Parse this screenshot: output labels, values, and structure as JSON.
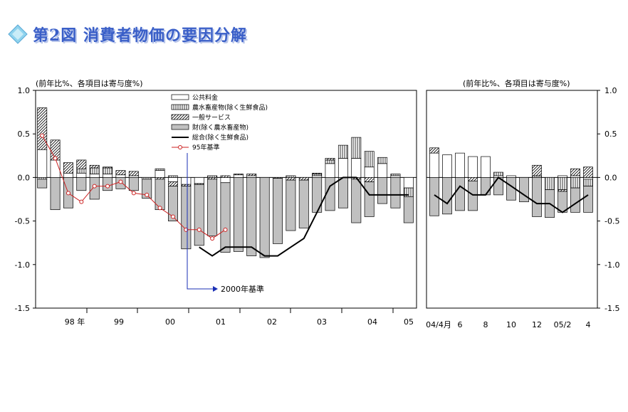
{
  "title": "第2図 消費者物価の要因分解",
  "colors": {
    "title": "#3a5fc8",
    "bar_goods": "#c0c0c0",
    "line": "#000000",
    "line95": "#cc2222"
  },
  "chart_data": [
    {
      "type": "bar",
      "stacked": true,
      "ylabel": "(前年比%、各項目は寄与度%)",
      "ylim": [
        -1.5,
        1.0
      ],
      "yticks": [
        "1.0",
        "0.5",
        "0.0",
        "-0.5",
        "-1.0",
        "-1.5"
      ],
      "x_labels": [
        "98 年",
        "99",
        "00",
        "01",
        "02",
        "03",
        "04",
        "05"
      ],
      "legend": [
        "公共料金",
        "農水畜産物(除く生鮮食品)",
        "一般サービス",
        "財(除く農水畜産物)",
        "総合(除く生鮮食品)",
        "95年基準"
      ],
      "annotation": "2000年基準",
      "n_periods": 29,
      "series": [
        {
          "name": "公共料金",
          "values": [
            0.32,
            0.2,
            0.05,
            0.05,
            0.04,
            0.04,
            0.03,
            0.02,
            0.0,
            0.08,
            -0.05,
            -0.08,
            -0.07,
            0.0,
            -0.06,
            0.03,
            0.02,
            0.0,
            0.0,
            0.0,
            0.0,
            0.02,
            0.16,
            0.22,
            0.22,
            0.12,
            0.16,
            0.02,
            -0.12
          ]
        },
        {
          "name": "農水畜産物(除く生鮮食品)",
          "values": [
            -0.02,
            0.0,
            0.0,
            0.05,
            0.07,
            0.07,
            0.0,
            0.0,
            -0.02,
            0.02,
            0.02,
            0.0,
            0.0,
            0.02,
            0.0,
            0.0,
            0.0,
            0.0,
            0.0,
            0.02,
            0.0,
            0.02,
            0.04,
            0.15,
            0.24,
            0.18,
            0.07,
            0.02,
            -0.1
          ]
        },
        {
          "name": "一般サービス",
          "values": [
            0.48,
            0.23,
            0.12,
            0.1,
            0.03,
            0.01,
            0.05,
            0.05,
            0.0,
            -0.02,
            -0.05,
            -0.02,
            -0.01,
            -0.02,
            0.02,
            0.01,
            0.02,
            0.0,
            -0.01,
            -0.03,
            -0.03,
            0.01,
            0.02,
            0.0,
            -0.02,
            -0.05,
            0.0,
            0.0,
            0.0
          ]
        },
        {
          "name": "財(除く農水畜産物)",
          "values": [
            -0.1,
            -0.37,
            -0.35,
            -0.15,
            -0.25,
            -0.15,
            -0.13,
            -0.15,
            -0.22,
            -0.35,
            -0.4,
            -0.72,
            -0.7,
            -0.65,
            -0.8,
            -0.85,
            -0.9,
            -0.92,
            -0.75,
            -0.58,
            -0.55,
            -0.4,
            -0.38,
            -0.35,
            -0.5,
            -0.4,
            -0.3,
            -0.35,
            -0.3
          ]
        },
        {
          "name": "総合(除く生鮮食品)",
          "type": "line",
          "values": [
            null,
            null,
            null,
            null,
            null,
            null,
            null,
            null,
            null,
            null,
            null,
            null,
            -0.8,
            -0.9,
            -0.8,
            -0.8,
            -0.8,
            -0.9,
            -0.9,
            -0.8,
            -0.7,
            -0.4,
            -0.1,
            0.0,
            0.0,
            -0.2,
            -0.2,
            -0.2,
            -0.2
          ]
        },
        {
          "name": "95年基準",
          "type": "line",
          "values": [
            0.48,
            0.22,
            -0.18,
            -0.28,
            -0.1,
            -0.1,
            -0.05,
            -0.18,
            -0.2,
            -0.35,
            -0.45,
            -0.6,
            -0.6,
            -0.7,
            -0.6,
            null,
            null,
            null,
            null,
            null,
            null,
            null,
            null,
            null,
            null,
            null,
            null,
            null,
            null
          ]
        }
      ]
    },
    {
      "type": "bar",
      "stacked": true,
      "ylabel": "(前年比%、各項目は寄与度%)",
      "ylim": [
        -1.5,
        1.0
      ],
      "yticks": [
        "1.0",
        "0.5",
        "0.0",
        "-0.5",
        "-1.0",
        "-1.5"
      ],
      "x_labels": [
        "04/4月",
        "6",
        "8",
        "10",
        "12",
        "05/2",
        "4"
      ],
      "n_periods": 13,
      "series": [
        {
          "name": "公共料金",
          "values": [
            0.28,
            0.26,
            0.28,
            0.24,
            0.24,
            0.02,
            0.02,
            0.0,
            0.0,
            0.0,
            0.02,
            0.02,
            -0.02
          ]
        },
        {
          "name": "農水畜産物(除く生鮮食品)",
          "values": [
            0.0,
            0.0,
            0.0,
            0.0,
            0.0,
            0.04,
            0.0,
            0.0,
            0.02,
            -0.14,
            -0.14,
            -0.12,
            -0.08
          ]
        },
        {
          "name": "一般サービス",
          "values": [
            0.06,
            0.0,
            0.0,
            -0.04,
            0.0,
            0.0,
            0.0,
            0.0,
            0.12,
            0.0,
            -0.02,
            0.08,
            0.12
          ]
        },
        {
          "name": "財(除く農水畜産物)",
          "values": [
            -0.44,
            -0.42,
            -0.38,
            -0.34,
            -0.2,
            -0.2,
            -0.26,
            -0.28,
            -0.45,
            -0.32,
            -0.24,
            -0.28,
            -0.3
          ]
        },
        {
          "name": "総合(除く生鮮食品)",
          "type": "line",
          "values": [
            -0.2,
            -0.3,
            -0.1,
            -0.2,
            -0.2,
            0.0,
            -0.1,
            -0.2,
            -0.3,
            -0.3,
            -0.4,
            -0.3,
            -0.2
          ]
        }
      ]
    }
  ]
}
